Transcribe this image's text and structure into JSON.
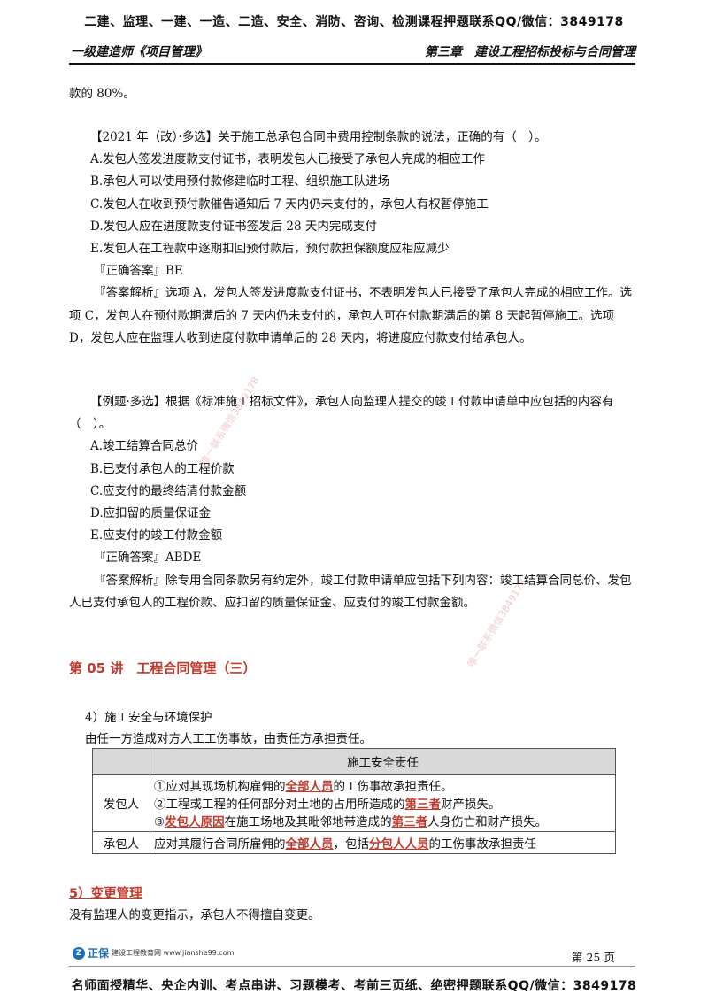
{
  "banner_top": "二建、监理、一建、一造、二造、安全、消防、咨询、检测课程押题联系QQ/微信：3849178",
  "header": {
    "left": "一级建造师《项目管理》",
    "right": "第三章　建设工程招标投标与合同管理"
  },
  "continuation": "款的 80%。",
  "q1": {
    "stem": "【2021 年（改）·多选】关于施工总承包合同中费用控制条款的说法，正确的有（　）。",
    "options": [
      "A.发包人签发进度款支付证书，表明发包人已接受了承包人完成的相应工作",
      "B.承包人可以使用预付款修建临时工程、组织施工队进场",
      "C.发包人在收到预付款催告通知后 7 天内仍未支付的，承包人有权暂停施工",
      "D.发包人应在进度款支付证书签发后 28 天内完成支付",
      "E.发包人在工程款中逐期扣回预付款后，预付款担保额度应相应减少"
    ],
    "answer": "『正确答案』BE",
    "analysis": "『答案解析』选项 A，发包人签发进度款支付证书，不表明发包人已接受了承包人完成的相应工作。选项 C，发包人在预付款期满后的 7 天内仍未支付的，承包人可在付款期满后的第 8 天起暂停施工。选项 D，发包人应在监理人收到进度付款申请单后的 28 天内，将进度应付款支付给承包人。"
  },
  "q2": {
    "stem": "【例题·多选】根据《标准施工招标文件》，承包人向监理人提交的竣工付款申请单中应包括的内容有（　）。",
    "options": [
      "A.竣工结算合同总价",
      "B.已支付承包人的工程价款",
      "C.应支付的最终结清付款金额",
      "D.应扣留的质量保证金",
      "E.应支付的竣工付款金额"
    ],
    "answer": "『正确答案』ABDE",
    "analysis": "『答案解析』除专用合同条款另有约定外，竣工付款申请单应包括下列内容：竣工结算合同总价、发包人已支付承包人的工程价款、应扣留的质量保证金、应支付的竣工付款金额。"
  },
  "lecture_title": "第 05 讲　工程合同管理（三）",
  "section4": {
    "heading": "4）施工安全与环境保护",
    "intro": "由任一方造成对方人工工伤事故，由责任方承担责任。",
    "table": {
      "header": "施工安全责任",
      "employer_label": "发包人",
      "employer_lines": [
        {
          "a": "①应对其现场机构雇佣的",
          "h1": "全部人员",
          "b": "的工伤事故承担责任。"
        },
        {
          "a": "②工程或工程的任何部分对土地的占用所造成的",
          "h1": "第三者",
          "b": "财产损失。"
        },
        {
          "a": "③",
          "h1": "发包人原因",
          "b": "在施工场地及其毗邻地带造成的",
          "h2": "第三者",
          "c": "人身伤亡和财产损失。"
        }
      ],
      "contractor_label": "承包人",
      "contractor_line": {
        "a": "应对其履行合同所雇佣的",
        "h1": "全部人员",
        "b": "，包括",
        "h2": "分包人人员",
        "c": "的工伤事故承担责任"
      }
    }
  },
  "section5": {
    "heading": "5）变更管理",
    "text": "没有监理人的变更指示，承包人不得擅自变更。"
  },
  "footer": {
    "logo_mark": "Z",
    "logo_brand": "正保",
    "logo_sub": "建设工程教育网 www.jianshe99.com",
    "page": "第 25 页"
  },
  "banner_bottom": "名师面授精华、央企内训、考点串讲、习题模考、考前三页纸、绝密押题联系QQ/微信：3849178",
  "watermarks": [
    "唯一联系微信3849178",
    "唯一联系微信3849178"
  ]
}
